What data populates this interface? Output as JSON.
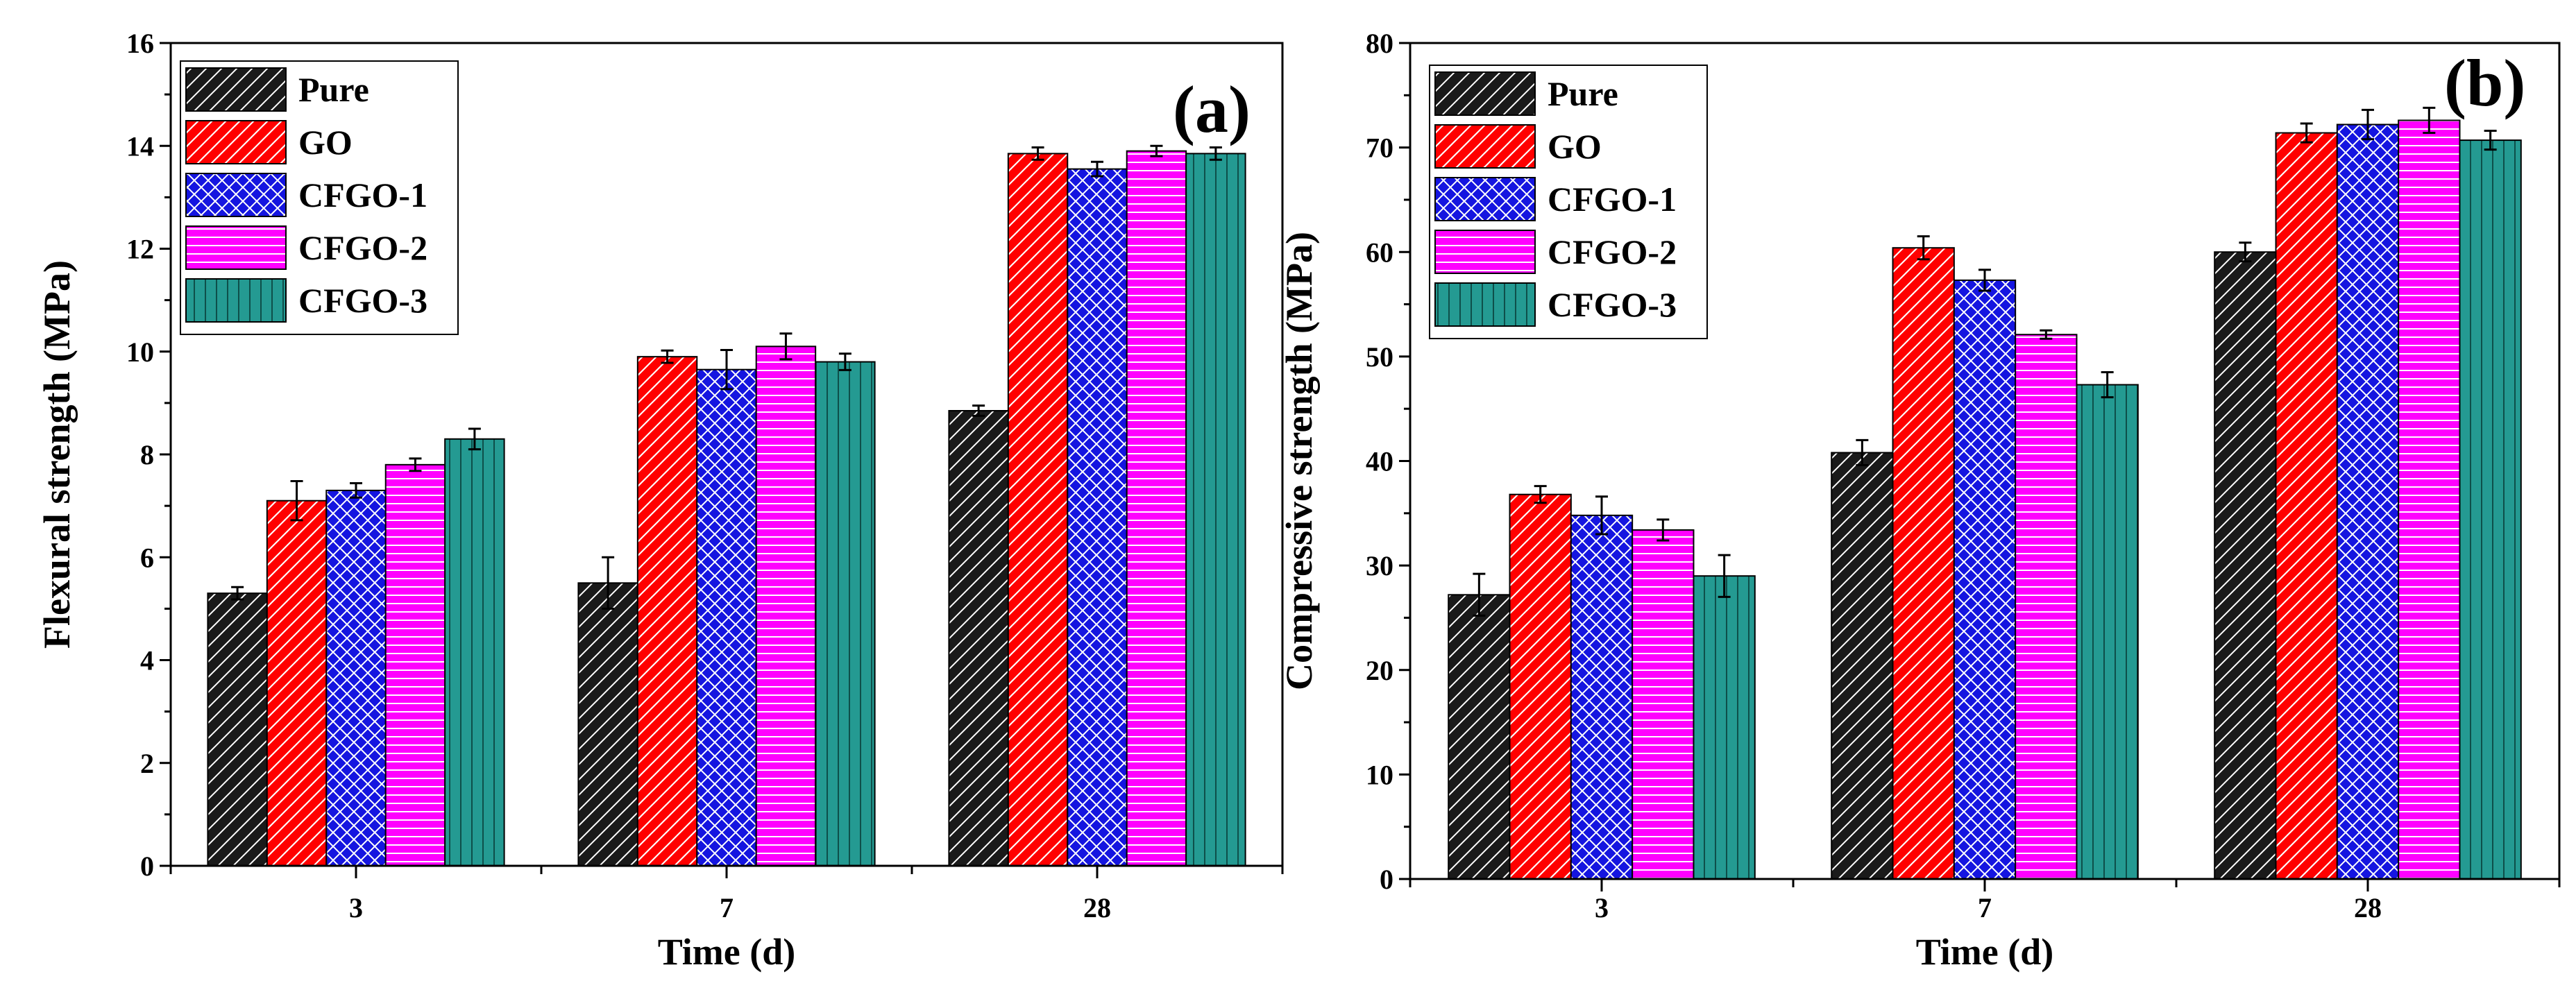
{
  "chart_data": [
    {
      "type": "bar",
      "panel_label": "(a)",
      "ylabel": "Flexural strength (MPa)",
      "xlabel": "Time (d)",
      "ylim": [
        0,
        16
      ],
      "yticks": [
        "0",
        "2",
        "4",
        "6",
        "8",
        "10",
        "12",
        "14",
        "16"
      ],
      "categories": [
        "3",
        "7",
        "28"
      ],
      "legend_position": "top-left",
      "series": [
        {
          "name": "Pure",
          "values": [
            5.3,
            5.5,
            8.85
          ],
          "errors": [
            0.12,
            0.5,
            0.1
          ]
        },
        {
          "name": "GO",
          "values": [
            7.1,
            9.9,
            13.85
          ],
          "errors": [
            0.38,
            0.12,
            0.12
          ]
        },
        {
          "name": "CFGO-1",
          "values": [
            7.3,
            9.65,
            13.55
          ],
          "errors": [
            0.14,
            0.38,
            0.14
          ]
        },
        {
          "name": "CFGO-2",
          "values": [
            7.8,
            10.1,
            13.9
          ],
          "errors": [
            0.12,
            0.25,
            0.1
          ]
        },
        {
          "name": "CFGO-3",
          "values": [
            8.3,
            9.8,
            13.85
          ],
          "errors": [
            0.2,
            0.16,
            0.12
          ]
        }
      ]
    },
    {
      "type": "bar",
      "panel_label": "(b)",
      "ylabel": "Compressive strength (MPa)",
      "xlabel": "Time (d)",
      "ylim": [
        0,
        80
      ],
      "yticks": [
        "0",
        "10",
        "20",
        "30",
        "40",
        "50",
        "60",
        "70",
        "80"
      ],
      "categories": [
        "3",
        "7",
        "28"
      ],
      "legend_position": "top-left",
      "series": [
        {
          "name": "Pure",
          "values": [
            27.2,
            40.8,
            60.0
          ],
          "errors": [
            2.0,
            1.2,
            0.9
          ]
        },
        {
          "name": "GO",
          "values": [
            36.8,
            60.4,
            71.4
          ],
          "errors": [
            0.8,
            1.1,
            0.9
          ]
        },
        {
          "name": "CFGO-1",
          "values": [
            34.8,
            57.3,
            72.2
          ],
          "errors": [
            1.8,
            1.0,
            1.4
          ]
        },
        {
          "name": "CFGO-2",
          "values": [
            33.4,
            52.1,
            72.6
          ],
          "errors": [
            1.0,
            0.4,
            1.2
          ]
        },
        {
          "name": "CFGO-3",
          "values": [
            29.0,
            47.3,
            70.7
          ],
          "errors": [
            2.0,
            1.2,
            0.9
          ]
        }
      ]
    }
  ],
  "series_colors": {
    "Pure": "#1a1a1a",
    "GO": "#ff0000",
    "CFGO-1": "#1515e0",
    "CFGO-2": "#ff00ff",
    "CFGO-3": "#249a92"
  }
}
